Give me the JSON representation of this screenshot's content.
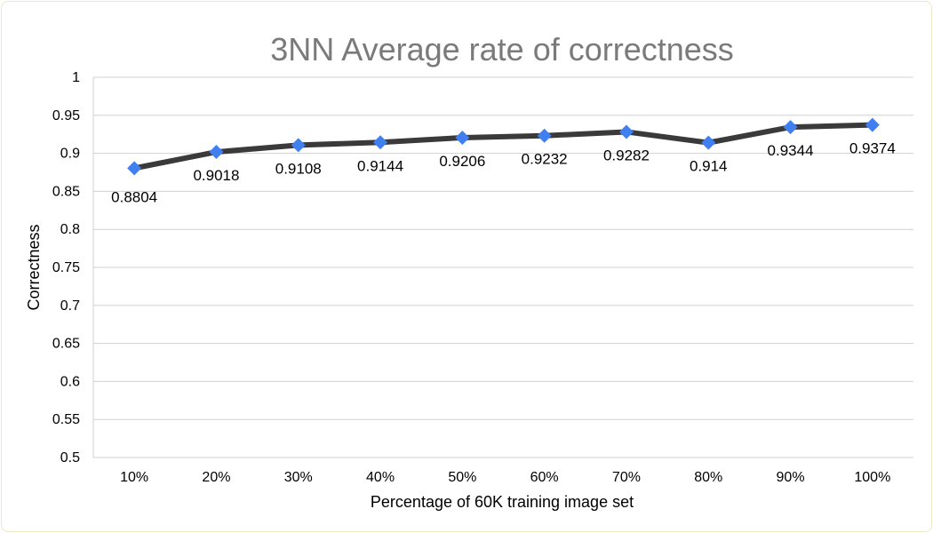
{
  "chart_data": {
    "type": "line",
    "title": "3NN Average rate of correctness",
    "xlabel": "Percentage of 60K training image set",
    "ylabel": "Correctness",
    "categories": [
      "10%",
      "20%",
      "30%",
      "40%",
      "50%",
      "60%",
      "70%",
      "80%",
      "90%",
      "100%"
    ],
    "series": [
      {
        "values": [
          0.8804,
          0.9018,
          0.9108,
          0.9144,
          0.9206,
          0.9232,
          0.9282,
          0.914,
          0.9344,
          0.9374
        ],
        "data_labels": [
          "0.8804",
          "0.9018",
          "0.9108",
          "0.9144",
          "0.9206",
          "0.9232",
          "0.9282",
          "0.914",
          "0.9344",
          "0.9374"
        ]
      }
    ],
    "ylim": [
      0.5,
      1
    ],
    "yticks": [
      "0.5",
      "0.55",
      "0.6",
      "0.65",
      "0.7",
      "0.75",
      "0.8",
      "0.85",
      "0.9",
      "0.95",
      "1"
    ],
    "grid": true,
    "legend": "none",
    "colors": {
      "line": "#3a3a3a",
      "marker": "#3f7ff0",
      "grid": "#d0d0d0",
      "title": "#7a7a7a",
      "frame": "#ece9c4"
    }
  }
}
